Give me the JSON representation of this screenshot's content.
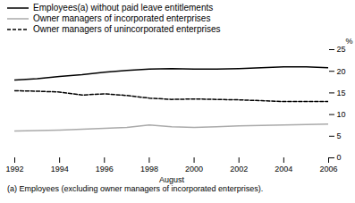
{
  "chart_data": {
    "type": "line",
    "x": [
      1992,
      1993,
      1994,
      1995,
      1996,
      1997,
      1998,
      1999,
      2000,
      2001,
      2002,
      2003,
      2004,
      2005,
      2006
    ],
    "series": [
      {
        "name": "Employees(a) without paid leave entitlements",
        "color": "#000000",
        "line_style": "solid",
        "values": [
          18.0,
          18.3,
          18.8,
          19.2,
          19.8,
          20.2,
          20.5,
          20.6,
          20.5,
          20.5,
          20.6,
          20.8,
          21.0,
          21.0,
          20.8
        ]
      },
      {
        "name": "Owner managers of incorporated enterprises",
        "color": "#aaaaaa",
        "line_style": "solid",
        "values": [
          6.2,
          6.3,
          6.4,
          6.6,
          6.8,
          7.0,
          7.6,
          7.2,
          7.0,
          7.2,
          7.4,
          7.5,
          7.6,
          7.7,
          7.8
        ]
      },
      {
        "name": "Owner managers of unincorporated enterprises",
        "color": "#000000",
        "line_style": "dashed",
        "values": [
          15.5,
          15.4,
          15.2,
          14.5,
          14.8,
          14.4,
          13.8,
          13.5,
          13.6,
          13.5,
          13.4,
          13.2,
          13.0,
          13.0,
          13.0
        ]
      }
    ],
    "x_label": "August",
    "y_label": "%",
    "xlim": [
      1992,
      2006
    ],
    "xticks": [
      1992,
      1994,
      1996,
      1998,
      2000,
      2002,
      2004,
      2006
    ],
    "ylim": [
      0,
      25
    ],
    "yticks": [
      0,
      5,
      10,
      15,
      20,
      25
    ],
    "caption": "(a) Employees (excluding owner managers of incorporated enterprises).",
    "legend": "top",
    "grid": false
  }
}
